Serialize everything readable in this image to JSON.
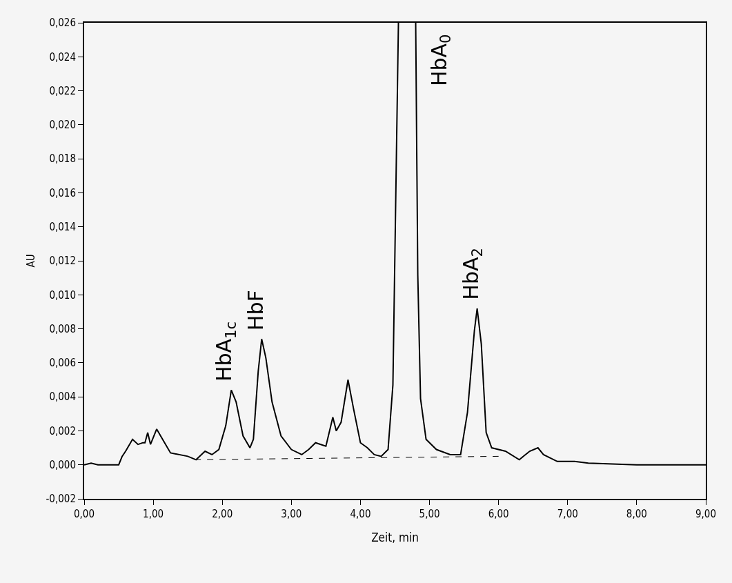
{
  "chart_data": {
    "type": "line",
    "xlabel": "Zeit, min",
    "ylabel": "AU",
    "xlim": [
      0,
      9
    ],
    "xticks": [
      {
        "value": 0,
        "label": "0,00"
      },
      {
        "value": 1,
        "label": "1,00"
      },
      {
        "value": 2,
        "label": "2,00"
      },
      {
        "value": 3,
        "label": "3,00"
      },
      {
        "value": 4,
        "label": "4,00"
      },
      {
        "value": 5,
        "label": "5,00"
      },
      {
        "value": 6,
        "label": "6,00"
      },
      {
        "value": 7,
        "label": "7,00"
      },
      {
        "value": 8,
        "label": "8,00"
      },
      {
        "value": 9,
        "label": "9,00"
      }
    ],
    "ylim": [
      -0.002,
      0.026
    ],
    "yticks": [
      {
        "value": -0.002,
        "label": "-0,002"
      },
      {
        "value": 0,
        "label": "0,000"
      },
      {
        "value": 0.002,
        "label": "0,002"
      },
      {
        "value": 0.004,
        "label": "0,004"
      },
      {
        "value": 0.006,
        "label": "0,006"
      },
      {
        "value": 0.008,
        "label": "0,008"
      },
      {
        "value": 0.01,
        "label": "0,010"
      },
      {
        "value": 0.012,
        "label": "0,012"
      },
      {
        "value": 0.014,
        "label": "0,014"
      },
      {
        "value": 0.016,
        "label": "0,016"
      },
      {
        "value": 0.018,
        "label": "0,018"
      },
      {
        "value": 0.02,
        "label": "0,020"
      },
      {
        "value": 0.022,
        "label": "0,022"
      },
      {
        "value": 0.024,
        "label": "0,024"
      },
      {
        "value": 0.026,
        "label": "0,026"
      }
    ],
    "grid": false,
    "marker": "none",
    "series": [
      {
        "color": "#000000",
        "line_style": "solid",
        "x": [
          0,
          0.1,
          0.2,
          0.5,
          0.55,
          0.6,
          0.7,
          0.78,
          0.85,
          0.88,
          0.92,
          0.96,
          1.05,
          1.15,
          1.25,
          1.5,
          1.62,
          1.75,
          1.85,
          1.95,
          2.05,
          2.13,
          2.2,
          2.3,
          2.4,
          2.45,
          2.52,
          2.57,
          2.63,
          2.72,
          2.85,
          3.0,
          3.15,
          3.25,
          3.35,
          3.5,
          3.6,
          3.65,
          3.72,
          3.82,
          3.9,
          4.0,
          4.1,
          4.2,
          4.3,
          4.4,
          4.47,
          4.55,
          4.7,
          4.8,
          4.83,
          4.87,
          4.95,
          5.1,
          5.3,
          5.45,
          5.55,
          5.65,
          5.69,
          5.75,
          5.82,
          5.9,
          6.1,
          6.3,
          6.45,
          6.57,
          6.65,
          6.85,
          7.1,
          7.3,
          8.0,
          9.0
        ],
        "values": [
          0,
          0.0001,
          0,
          0,
          0.0005,
          0.0008,
          0.0015,
          0.0012,
          0.0013,
          0.0013,
          0.0019,
          0.0012,
          0.0021,
          0.0014,
          0.0007,
          0.0005,
          0.0003,
          0.0008,
          0.0006,
          0.0009,
          0.0023,
          0.0044,
          0.0037,
          0.0017,
          0.001,
          0.0015,
          0.0055,
          0.0074,
          0.0063,
          0.0037,
          0.0017,
          0.0009,
          0.0006,
          0.0009,
          0.0013,
          0.0011,
          0.0028,
          0.002,
          0.0025,
          0.005,
          0.0033,
          0.0013,
          0.001,
          0.0006,
          0.0005,
          0.0009,
          0.0047,
          0.026,
          null,
          0.026,
          0.0112,
          0.0039,
          0.0015,
          0.0009,
          0.0006,
          0.0006,
          0.0031,
          0.0079,
          0.0092,
          0.0071,
          0.0019,
          0.001,
          0.0008,
          0.0003,
          0.0008,
          0.001,
          0.0006,
          0.0002,
          0.0002,
          0.0001,
          0,
          0
        ]
      },
      {
        "color": "#000000",
        "line_style": "dashed",
        "x": [
          1.6,
          6.0
        ],
        "values": [
          0.0003,
          0.0005
        ]
      }
    ],
    "annotations": [
      {
        "text": "HbA$_{1c}$",
        "x": 2.13,
        "y": 0.0044
      },
      {
        "text": "HbF",
        "x": 2.57,
        "y": 0.0074
      },
      {
        "text": "HbA$_{0}$",
        "x": 4.8,
        "y": 0.026
      },
      {
        "text": "HbA$_{2}$",
        "x": 5.69,
        "y": 0.0092
      }
    ]
  }
}
